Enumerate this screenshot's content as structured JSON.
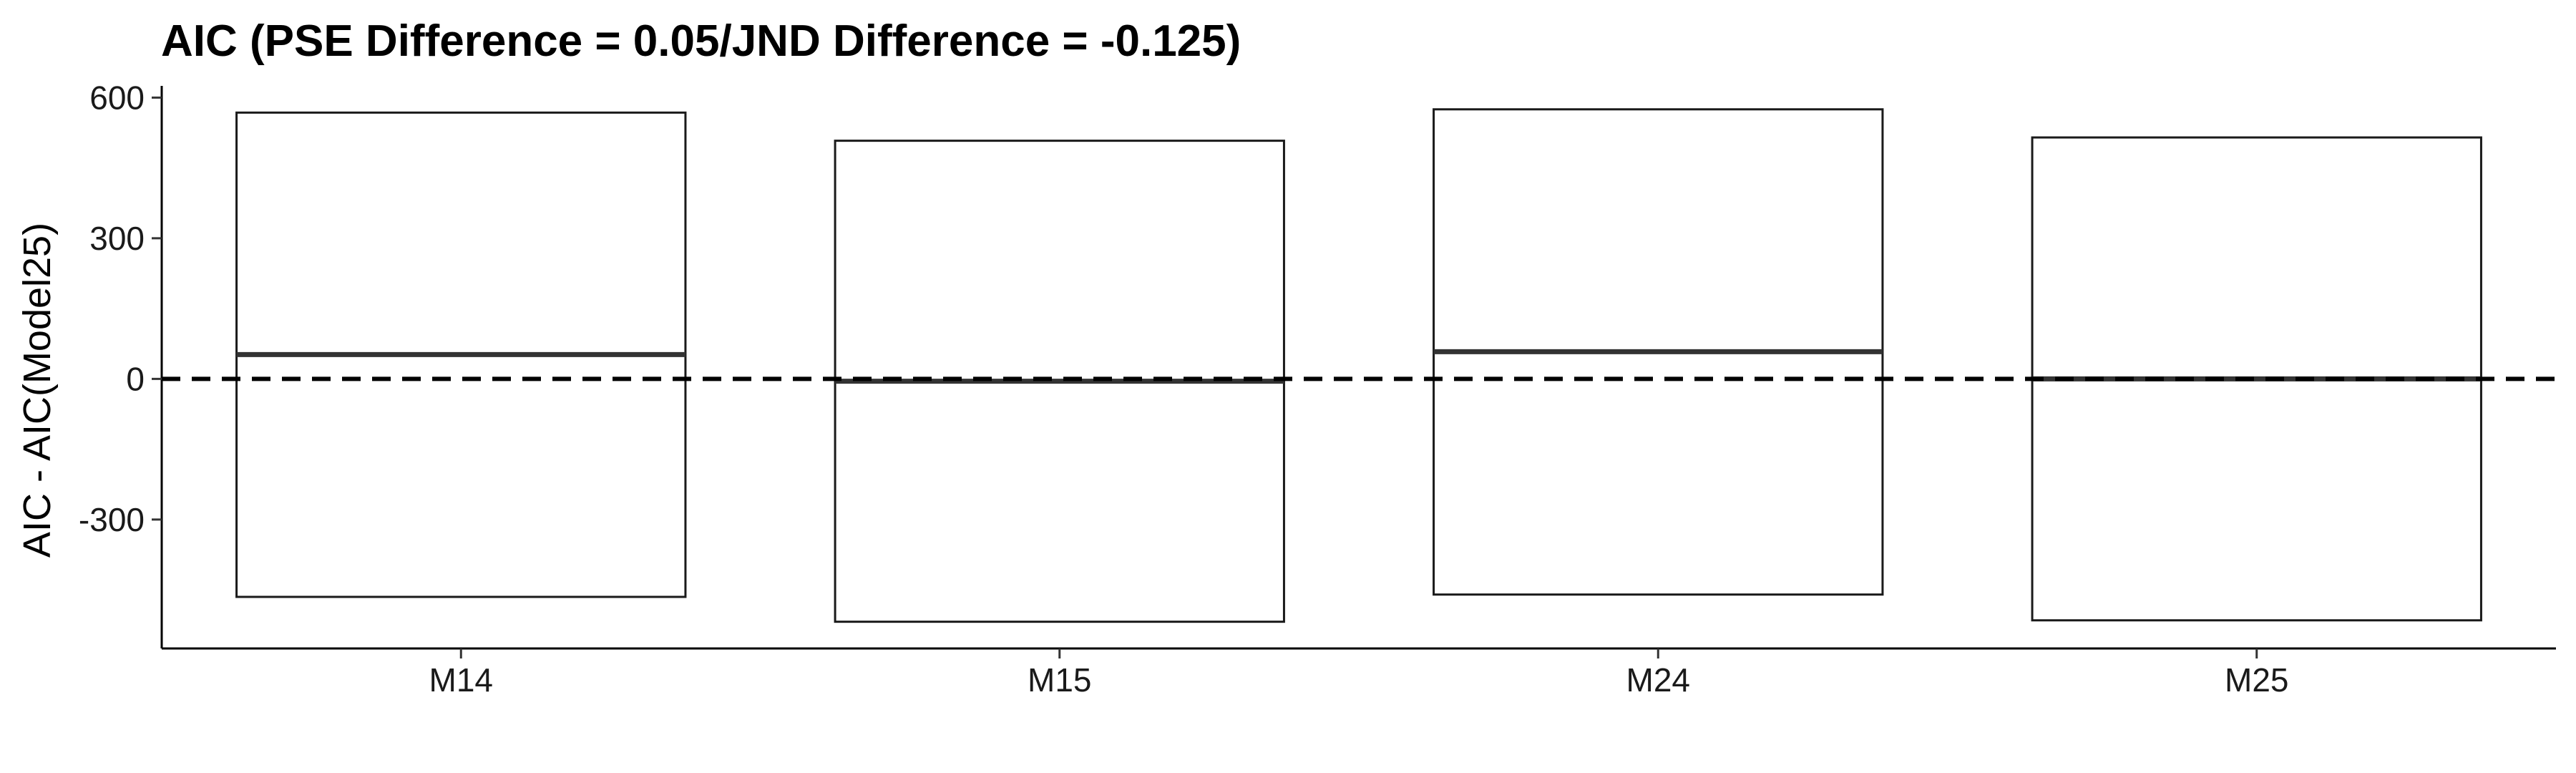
{
  "chart_data": {
    "type": "box",
    "title": "AIC (PSE Difference = 0.05/JND Difference = -0.125)",
    "xlabel": "",
    "ylabel": "AIC - AIC(Model25)",
    "categories": [
      "M14",
      "M15",
      "M24",
      "M25"
    ],
    "boxes": [
      {
        "category": "M14",
        "lower": -465,
        "median": 52,
        "upper": 568
      },
      {
        "category": "M15",
        "lower": -518,
        "median": -5,
        "upper": 508
      },
      {
        "category": "M24",
        "lower": -460,
        "median": 58,
        "upper": 575
      },
      {
        "category": "M25",
        "lower": -515,
        "median": 0,
        "upper": 515
      }
    ],
    "yticks": [
      600,
      300,
      0,
      -300
    ],
    "ytick_labels": [
      "600",
      "300",
      "0",
      "-300"
    ],
    "ylim": [
      -575,
      625
    ],
    "reference_line": {
      "y": 0,
      "style": "dashed"
    },
    "grid": false,
    "legend": "none"
  }
}
